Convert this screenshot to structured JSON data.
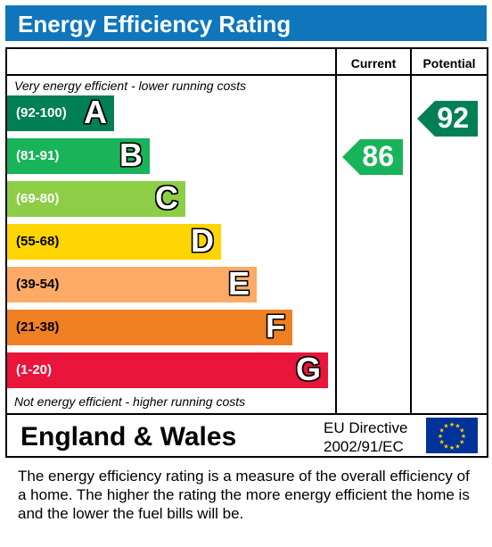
{
  "title": "Energy Efficiency Rating",
  "columns": {
    "current": "Current",
    "potential": "Potential"
  },
  "top_note": "Very energy efficient - lower running costs",
  "bottom_note": "Not energy efficient - higher running costs",
  "bands": [
    {
      "range": "(92-100)",
      "letter": "A",
      "color": "#008054"
    },
    {
      "range": "(81-91)",
      "letter": "B",
      "color": "#19b459"
    },
    {
      "range": "(69-80)",
      "letter": "C",
      "color": "#8dce46"
    },
    {
      "range": "(55-68)",
      "letter": "D",
      "color": "#ffd500"
    },
    {
      "range": "(39-54)",
      "letter": "E",
      "color": "#fcaa65"
    },
    {
      "range": "(21-38)",
      "letter": "F",
      "color": "#ef8023"
    },
    {
      "range": "(1-20)",
      "letter": "G",
      "color": "#e9153b"
    }
  ],
  "current": {
    "value": "86",
    "band": "B",
    "color": "#19b459"
  },
  "potential": {
    "value": "92",
    "band": "A",
    "color": "#008054"
  },
  "country": "England & Wales",
  "directive": {
    "line1": "EU Directive",
    "line2": "2002/91/EC"
  },
  "flag_icon": "eu-flag-icon",
  "footer": "The energy efficiency rating is a measure of the overall efficiency of a home.  The higher the rating the more energy efficient the home is and the lower the fuel bills will be."
}
